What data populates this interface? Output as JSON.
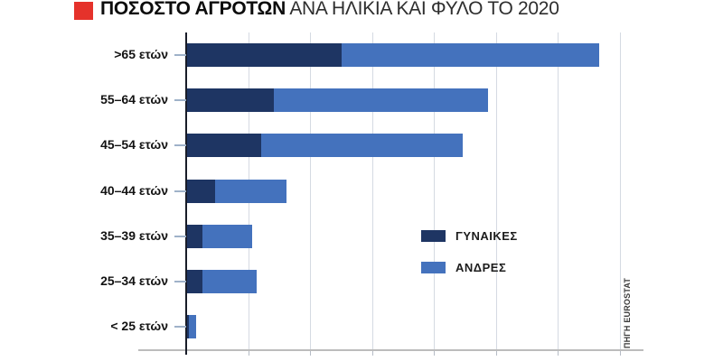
{
  "header": {
    "title_bold": "ΠΟΣΟΣΤΟ ΑΓΡΟΤΩΝ",
    "title_rest": " ΑΝΑ ΗΛΙΚΙΑ ΚΑΙ ΦΥΛΟ ΤΟ 2020",
    "bullet_color": "#e5322b"
  },
  "source": "ΠΗΓΗ EUROSTAT",
  "colors": {
    "women": "#1e3563",
    "men": "#4472bd",
    "gridline": "#d5dae2",
    "y_axis": "#181c28",
    "x_axis": "#bcbcbc"
  },
  "chart_data": {
    "type": "bar",
    "orientation": "horizontal",
    "stacked": true,
    "title": "ΠΟΣΟΣΤΟ ΑΓΡΟΤΩΝ ΑΝΑ ΗΛΙΚΙΑ ΚΑΙ ΦΥΛΟ ΤΟ 2020",
    "categories": [
      ">65 ετών",
      "55–64 ετών",
      "45–54 ετών",
      "40–44 ετών",
      "35–39 ετών",
      "25–34 ετών",
      "< 25 ετών"
    ],
    "series": [
      {
        "name": "ΓΥΝΑΙΚΕΣ",
        "color": "#1e3563",
        "values": [
          25,
          14,
          12,
          4.5,
          2.5,
          2.5,
          0.3
        ]
      },
      {
        "name": "ΑΝΔΡΕΣ",
        "color": "#4472bd",
        "values": [
          41.5,
          34.5,
          32.5,
          11.5,
          8,
          8.8,
          1.1
        ]
      }
    ],
    "xlabel": "",
    "ylabel": "",
    "xlim": [
      0,
      70
    ],
    "x_gridline_step": 10,
    "x_tick_labels_visible": false,
    "grid": "on",
    "legend_position": "center-right"
  }
}
